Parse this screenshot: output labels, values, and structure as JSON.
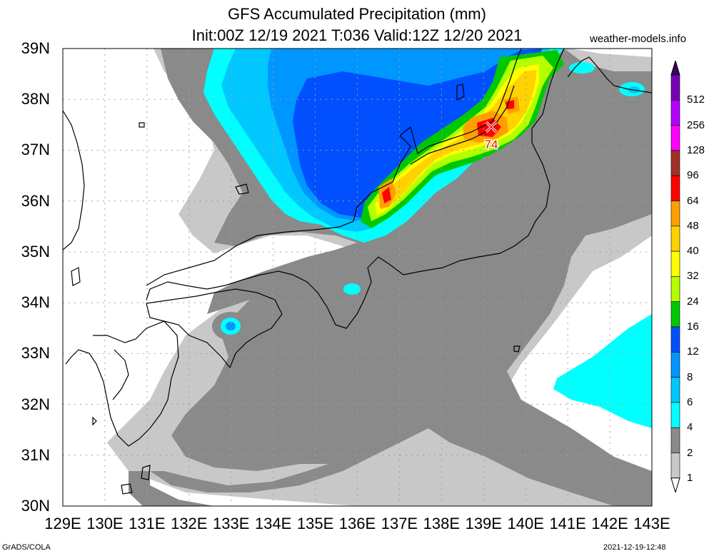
{
  "header": {
    "title_line1": "GFS Accumulated Precipitation (mm)",
    "title_line2": "Init:00Z 12/19 2021 T:036 Valid:12Z 12/20 2021",
    "site": "weather-models.info"
  },
  "map": {
    "lat_labels": [
      "39N",
      "38N",
      "37N",
      "36N",
      "35N",
      "34N",
      "33N",
      "32N",
      "31N",
      "30N"
    ],
    "lon_labels": [
      "129E",
      "130E",
      "131E",
      "132E",
      "133E",
      "134E",
      "135E",
      "136E",
      "137E",
      "138E",
      "139E",
      "140E",
      "141E",
      "142E",
      "143E"
    ],
    "lat_range": [
      30,
      39
    ],
    "lon_range": [
      129,
      143
    ],
    "max_marker": {
      "value": "74",
      "lon": 139.2,
      "lat": 37.45
    }
  },
  "legend": {
    "levels": [
      "512",
      "256",
      "128",
      "96",
      "64",
      "48",
      "40",
      "32",
      "24",
      "16",
      "12",
      "8",
      "6",
      "4",
      "2",
      "1"
    ],
    "colors": {
      "1": "#c8c8c8",
      "2": "#8a8a8a",
      "4": "#00ffff",
      "6": "#00c8ff",
      "8": "#0096ff",
      "12": "#0050ff",
      "16": "#00c800",
      "24": "#b4ff00",
      "32": "#ffff00",
      "40": "#ffd200",
      "48": "#ffa000",
      "64": "#ff0000",
      "96": "#a03028",
      "128": "#ff00ff",
      "256": "#b400ff",
      "512": "#7800b4"
    }
  },
  "footer": {
    "left": "GrADS/COLA",
    "right": "2021-12-19-12:48"
  }
}
